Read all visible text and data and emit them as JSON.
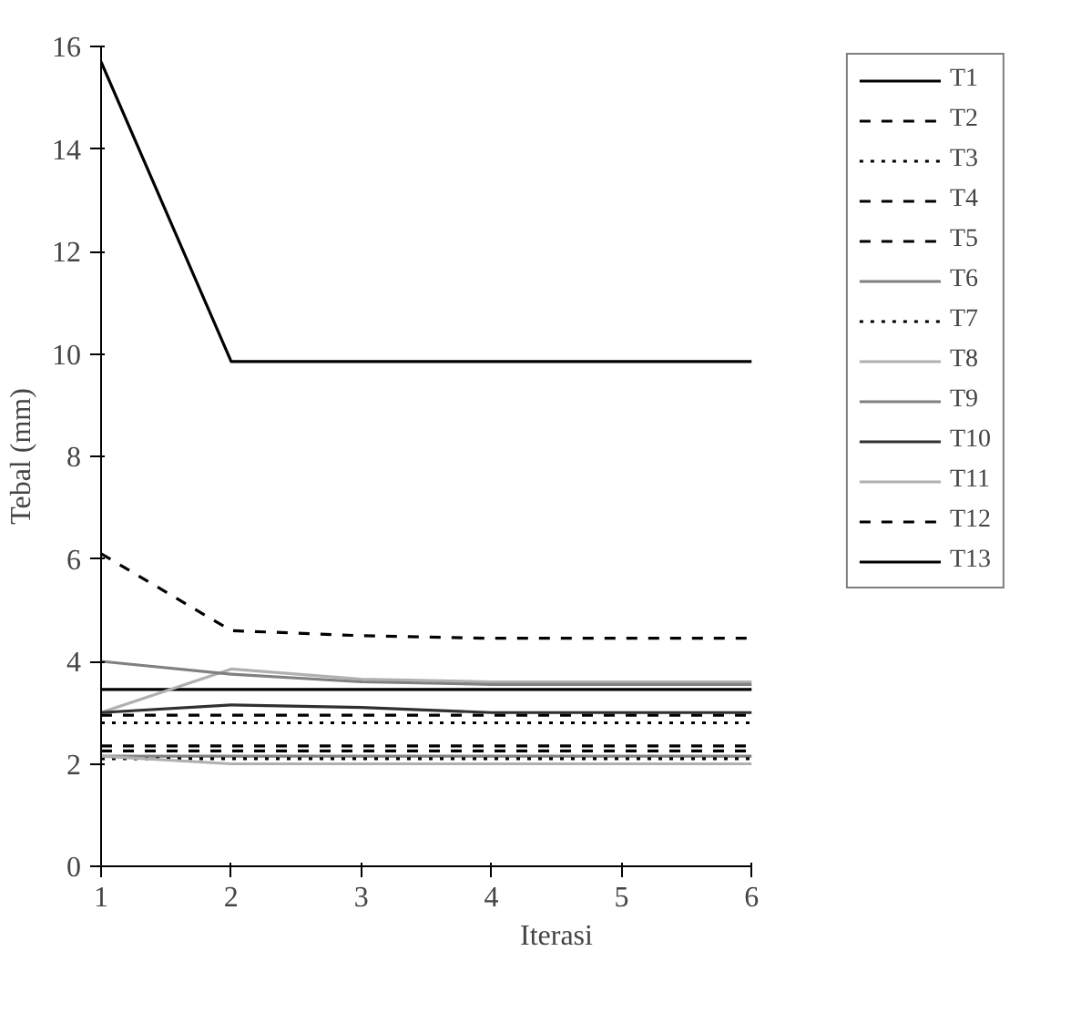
{
  "chart_data": {
    "type": "line",
    "xlabel": "Iterasi",
    "ylabel": "Tebal (mm)",
    "x": [
      1,
      2,
      3,
      4,
      5,
      6
    ],
    "xlim": [
      1,
      6
    ],
    "xticks": [
      1,
      2,
      3,
      4,
      5,
      6
    ],
    "ylim": [
      0,
      16
    ],
    "yticks": [
      0,
      2,
      4,
      6,
      8,
      10,
      12,
      14,
      16
    ],
    "grid": false,
    "legend": "right",
    "marker": "none",
    "series": [
      {
        "name": "T1",
        "color": "#000000",
        "line_style": "solid",
        "values": [
          3.45,
          3.45,
          3.45,
          3.45,
          3.45,
          3.45
        ]
      },
      {
        "name": "T2",
        "color": "#000000",
        "line_style": "dashed",
        "values": [
          2.95,
          2.95,
          2.95,
          2.95,
          2.95,
          2.95
        ]
      },
      {
        "name": "T3",
        "color": "#000000",
        "line_style": "dotted",
        "values": [
          2.8,
          2.8,
          2.8,
          2.8,
          2.8,
          2.8
        ]
      },
      {
        "name": "T4",
        "color": "#000000",
        "line_style": "dashed",
        "values": [
          2.35,
          2.35,
          2.35,
          2.35,
          2.35,
          2.35
        ]
      },
      {
        "name": "T5",
        "color": "#000000",
        "line_style": "dashed",
        "values": [
          2.25,
          2.25,
          2.25,
          2.25,
          2.25,
          2.25
        ]
      },
      {
        "name": "T6",
        "color": "#808080",
        "line_style": "solid",
        "values": [
          2.15,
          2.15,
          2.15,
          2.15,
          2.15,
          2.15
        ]
      },
      {
        "name": "T7",
        "color": "#000000",
        "line_style": "dotted",
        "values": [
          2.1,
          2.1,
          2.1,
          2.1,
          2.1,
          2.1
        ]
      },
      {
        "name": "T8",
        "color": "#b0b0b0",
        "line_style": "solid",
        "values": [
          3.0,
          3.85,
          3.65,
          3.6,
          3.6,
          3.6
        ]
      },
      {
        "name": "T9",
        "color": "#808080",
        "line_style": "solid",
        "values": [
          4.0,
          3.75,
          3.6,
          3.55,
          3.55,
          3.55
        ]
      },
      {
        "name": "T10",
        "color": "#303030",
        "line_style": "solid",
        "values": [
          3.0,
          3.15,
          3.1,
          3.0,
          3.0,
          3.0
        ]
      },
      {
        "name": "T11",
        "color": "#b0b0b0",
        "line_style": "solid",
        "values": [
          2.15,
          2.0,
          2.0,
          2.0,
          2.0,
          2.0
        ]
      },
      {
        "name": "T12",
        "color": "#000000",
        "line_style": "dashed",
        "values": [
          6.1,
          4.6,
          4.5,
          4.45,
          4.45,
          4.45
        ]
      },
      {
        "name": "T13",
        "color": "#000000",
        "line_style": "solid",
        "values": [
          15.7,
          9.85,
          9.85,
          9.85,
          9.85,
          9.85
        ]
      }
    ]
  }
}
